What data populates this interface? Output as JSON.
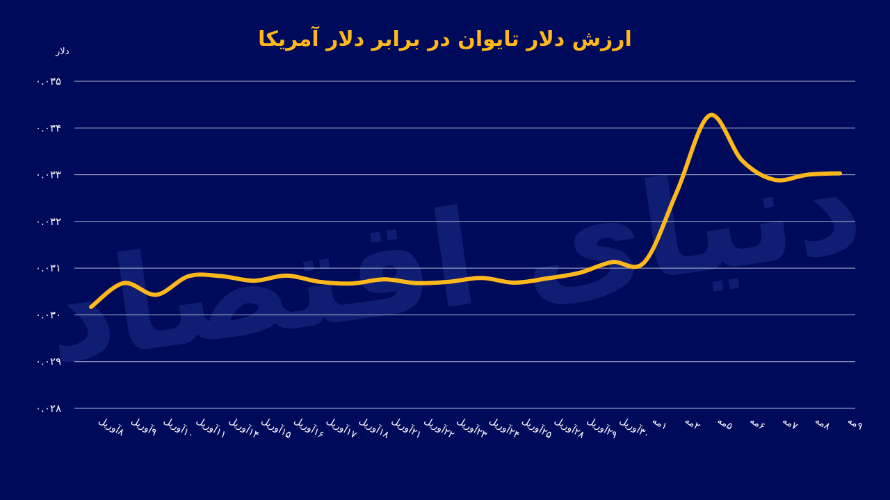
{
  "colors": {
    "background": "#000a5a",
    "line": "#ffb81c",
    "title": "#ffb81c",
    "text": "#ffffff",
    "grid": "#d6d9ee",
    "watermark": "#1c2f86"
  },
  "watermark": "دنیای اقتصاد",
  "chart_data": {
    "type": "line",
    "title": "ارزش دلار تایوان در برابر دلار آمریکا",
    "ylabel": "دلار",
    "xlabel": "",
    "ylim": [
      0.028,
      0.035
    ],
    "y_ticks": [
      0.028,
      0.029,
      0.03,
      0.031,
      0.032,
      0.033,
      0.034,
      0.035
    ],
    "y_tick_labels": [
      "۰.۰۲۸",
      "۰.۰۲۹",
      "۰.۰۳۰",
      "۰.۰۳۱",
      "۰.۰۳۲",
      "۰.۰۳۳",
      "۰.۰۳۴",
      "۰.۰۳۵"
    ],
    "grid": true,
    "categories": [
      "۸آوریل",
      "۹آوریل",
      "۱۰آوریل",
      "۱۱آوریل",
      "۱۴آوریل",
      "۱۵آوریل",
      "۱۶آوریل",
      "۱۷آوریل",
      "۱۸آوریل",
      "۲۱آوریل",
      "۲۲آوریل",
      "۲۳آوریل",
      "۲۴آوریل",
      "۲۵آوریل",
      "۲۸آوریل",
      "۲۹آوریل",
      "۳۰آوریل",
      "۱مه",
      "۲مه",
      "۵مه",
      "۶مه",
      "۷مه",
      "۸مه",
      "۹مه"
    ],
    "series": [
      {
        "values": [
          0.03017,
          0.03068,
          0.03043,
          0.03083,
          0.03083,
          0.03073,
          0.03084,
          0.03071,
          0.03067,
          0.03076,
          0.03068,
          0.03071,
          0.03079,
          0.03069,
          0.03078,
          0.0309,
          0.03113,
          0.03113,
          0.03265,
          0.03427,
          0.0333,
          0.03289,
          0.033,
          0.03303
        ]
      }
    ]
  }
}
